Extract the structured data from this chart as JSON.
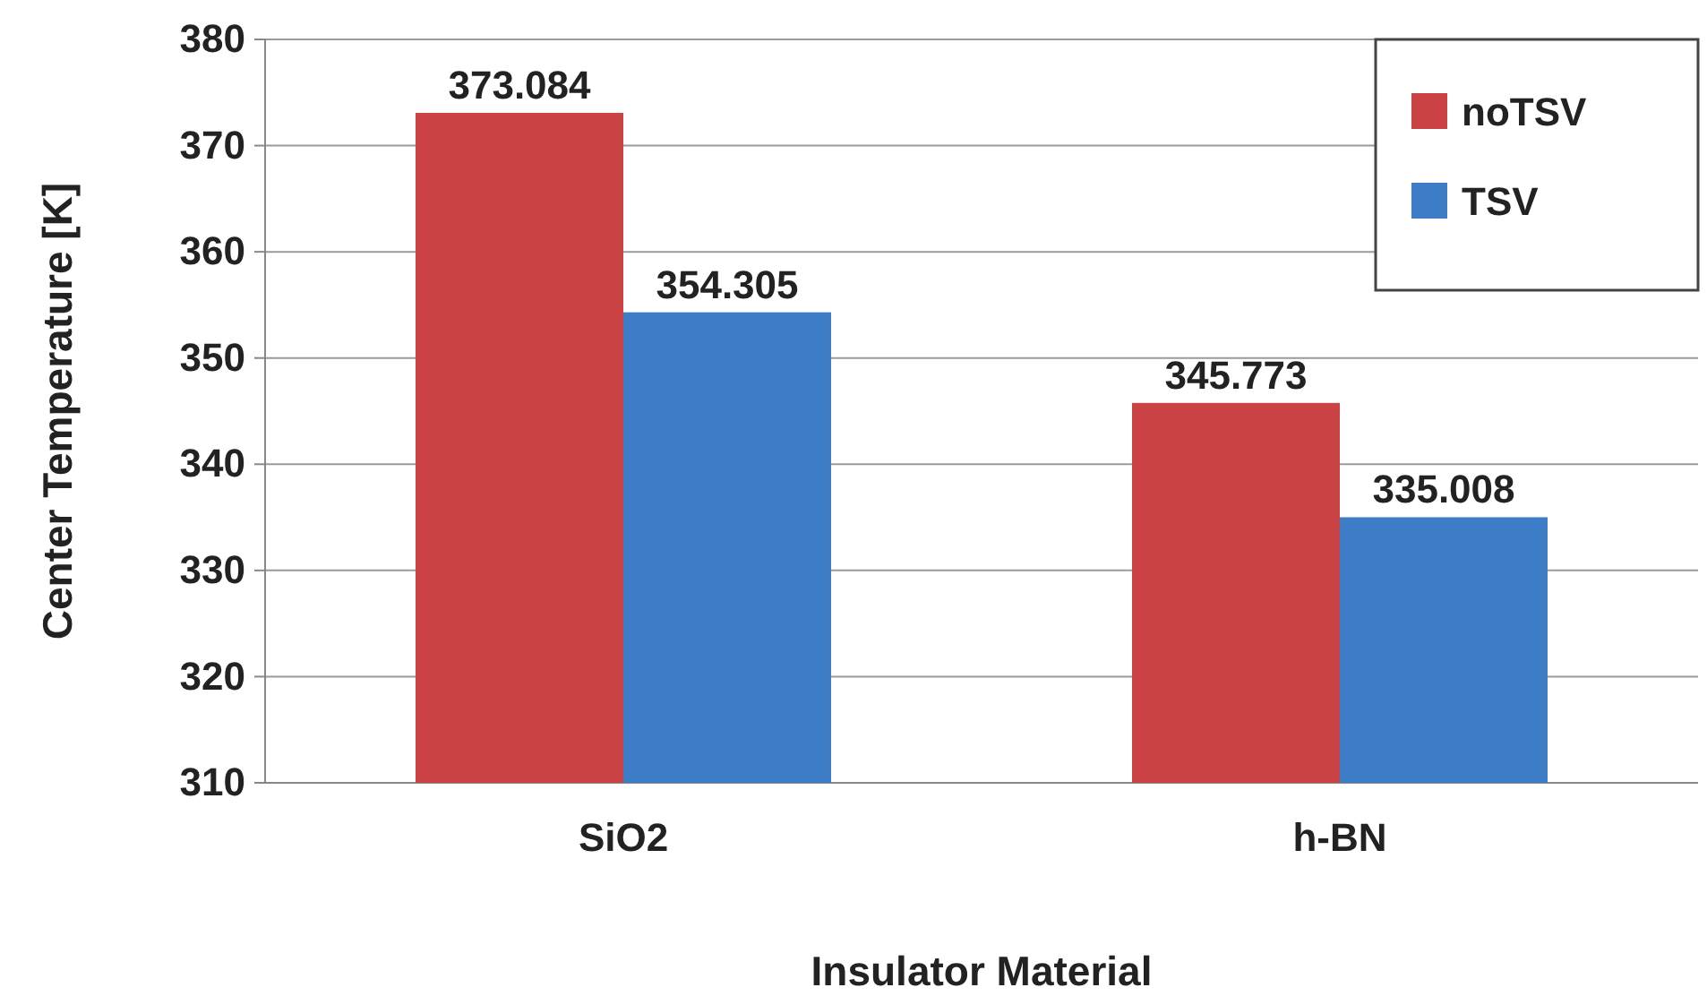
{
  "chart_data": {
    "type": "bar",
    "xlabel": "Insulator Material",
    "ylabel": "Center Temperature [K]",
    "categories": [
      "SiO2",
      "h-BN"
    ],
    "series": [
      {
        "name": "noTSV",
        "color": "#cc4346",
        "values": [
          373.084,
          345.773
        ]
      },
      {
        "name": "TSV",
        "color": "#3d7dc8",
        "values": [
          354.305,
          335.008
        ]
      }
    ],
    "ylim": [
      310,
      380
    ],
    "yticks": [
      310,
      320,
      330,
      340,
      350,
      360,
      370,
      380
    ],
    "grid": "y",
    "legend": "top right",
    "data_labels": true
  }
}
